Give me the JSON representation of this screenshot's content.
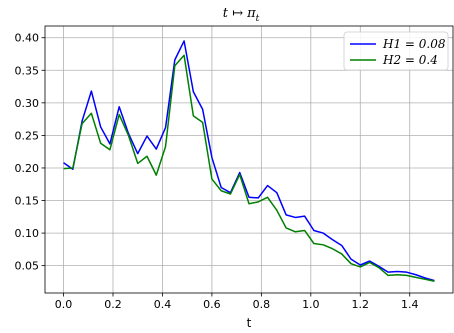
{
  "chart_data": {
    "type": "line",
    "title": "t ↦ π_t",
    "xlabel": "t",
    "ylabel": "",
    "xlim": [
      -0.075,
      1.575
    ],
    "ylim": [
      0.008,
      0.418
    ],
    "xticks": [
      0.0,
      0.2,
      0.4,
      0.6,
      0.8,
      1.0,
      1.2,
      1.4
    ],
    "xtick_labels": [
      "0.0",
      "0.2",
      "0.4",
      "0.6",
      "0.8",
      "1.0",
      "1.2",
      "1.4"
    ],
    "yticks": [
      0.05,
      0.1,
      0.15,
      0.2,
      0.25,
      0.3,
      0.35,
      0.4
    ],
    "ytick_labels": [
      "0.05",
      "0.10",
      "0.15",
      "0.20",
      "0.25",
      "0.30",
      "0.35",
      "0.40"
    ],
    "grid": true,
    "legend_position": "top-right",
    "x": [
      0.0,
      0.0375,
      0.075,
      0.1125,
      0.15,
      0.1875,
      0.225,
      0.2625,
      0.3,
      0.3375,
      0.375,
      0.4125,
      0.45,
      0.4875,
      0.525,
      0.5625,
      0.6,
      0.6375,
      0.675,
      0.7125,
      0.75,
      0.7875,
      0.825,
      0.8625,
      0.9,
      0.9375,
      0.975,
      1.0125,
      1.05,
      1.0875,
      1.125,
      1.1625,
      1.2,
      1.2375,
      1.275,
      1.3125,
      1.35,
      1.3875,
      1.425,
      1.4625,
      1.5
    ],
    "series": [
      {
        "name": "H1 = 0.08",
        "color": "#0000ff",
        "values": [
          0.208,
          0.198,
          0.272,
          0.318,
          0.263,
          0.237,
          0.294,
          0.253,
          0.222,
          0.249,
          0.229,
          0.262,
          0.366,
          0.395,
          0.317,
          0.29,
          0.216,
          0.17,
          0.162,
          0.193,
          0.155,
          0.154,
          0.173,
          0.162,
          0.128,
          0.124,
          0.126,
          0.104,
          0.1,
          0.09,
          0.081,
          0.06,
          0.051,
          0.057,
          0.049,
          0.04,
          0.041,
          0.04,
          0.036,
          0.031,
          0.027
        ]
      },
      {
        "name": "H2 = 0.4",
        "color": "#008000",
        "values": [
          0.199,
          0.2,
          0.268,
          0.284,
          0.238,
          0.228,
          0.282,
          0.25,
          0.207,
          0.218,
          0.189,
          0.233,
          0.357,
          0.373,
          0.28,
          0.27,
          0.183,
          0.165,
          0.16,
          0.19,
          0.145,
          0.148,
          0.155,
          0.135,
          0.108,
          0.102,
          0.104,
          0.084,
          0.082,
          0.076,
          0.068,
          0.053,
          0.048,
          0.055,
          0.047,
          0.035,
          0.036,
          0.035,
          0.032,
          0.029,
          0.026
        ]
      }
    ]
  }
}
